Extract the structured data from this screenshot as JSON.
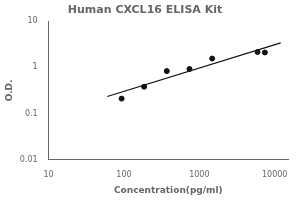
{
  "chart_data": {
    "type": "scatter",
    "title": "Human CXCL16 ELISA Kit",
    "x_label": "Concentration(pg/ml)",
    "y_label": "O.D.",
    "series": [
      {
        "type": "scatter",
        "color": "#111111",
        "marker": "circle",
        "x": [
          93,
          185,
          370,
          740,
          1480,
          5920,
          7400
        ],
        "values": [
          0.21,
          0.38,
          0.83,
          0.92,
          1.55,
          2.15,
          2.1
        ]
      },
      {
        "type": "line",
        "color": "#111111",
        "line_style": "solid",
        "x": [
          60,
          12000
        ],
        "values": [
          0.2331,
          3.38
        ]
      }
    ],
    "log": true,
    "xlim": [
      10,
      15000
    ],
    "xticks": [
      10,
      100,
      1000,
      10000
    ],
    "ylim": [
      0.01,
      10
    ],
    "yticks": [
      0.01,
      0.1,
      1,
      10
    ],
    "grid": false
  }
}
